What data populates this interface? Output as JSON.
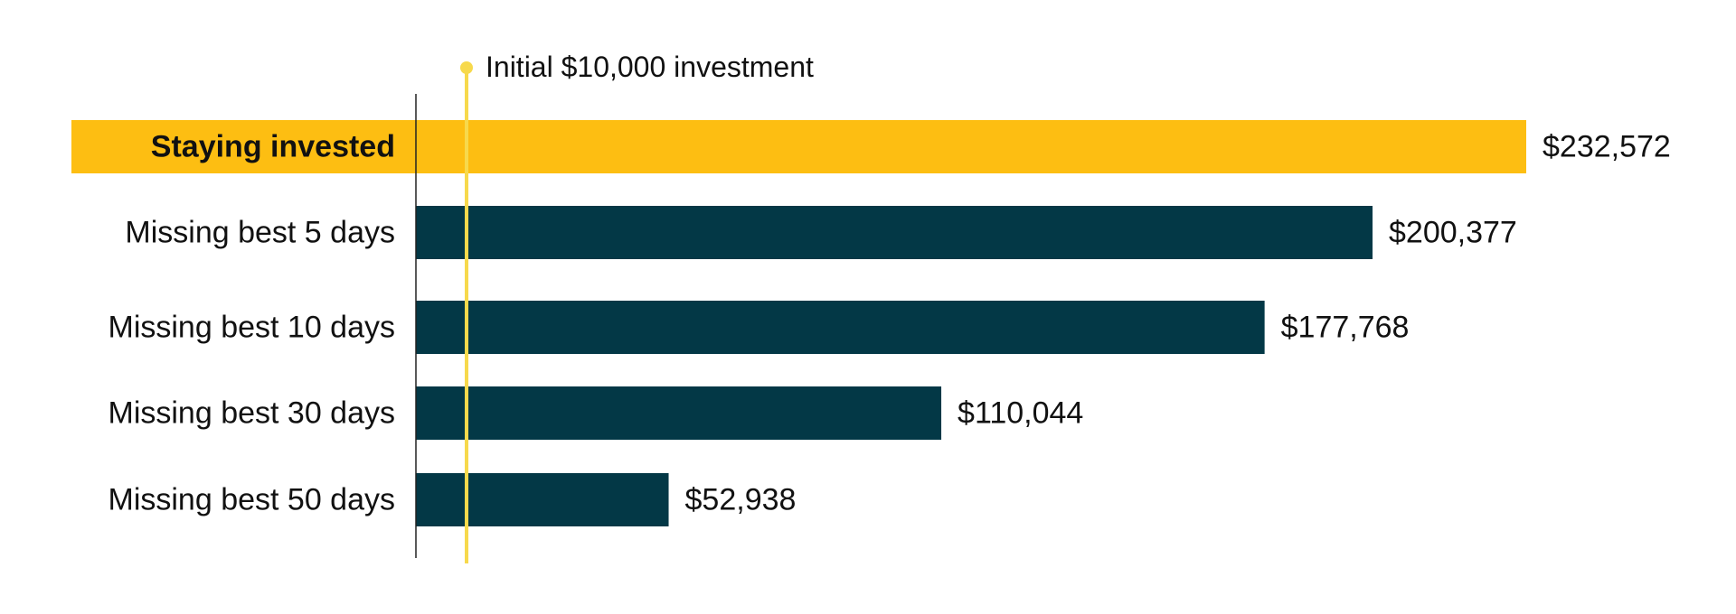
{
  "colors": {
    "highlight_bar": "#FDBE12",
    "bar": "#033846",
    "reference_line": "#F7D94C",
    "axis": "#222222",
    "text": "#111111"
  },
  "chart_data": {
    "type": "bar",
    "orientation": "horizontal",
    "title": "",
    "xlabel": "",
    "ylabel": "",
    "categories": [
      "Staying invested",
      "Missing best 5 days",
      "Missing best 10 days",
      "Missing best 30 days",
      "Missing best 50 days"
    ],
    "values": [
      232572,
      200377,
      177768,
      110044,
      52938
    ],
    "value_labels": [
      "$232,572",
      "$200,377",
      "$177,768",
      "$110,044",
      "$52,938"
    ],
    "highlight_index": 0,
    "reference_line": {
      "value": 10000,
      "label": "Initial $10,000 investment"
    },
    "xlim": [
      0,
      232572
    ],
    "grid": false,
    "legend": "none"
  }
}
